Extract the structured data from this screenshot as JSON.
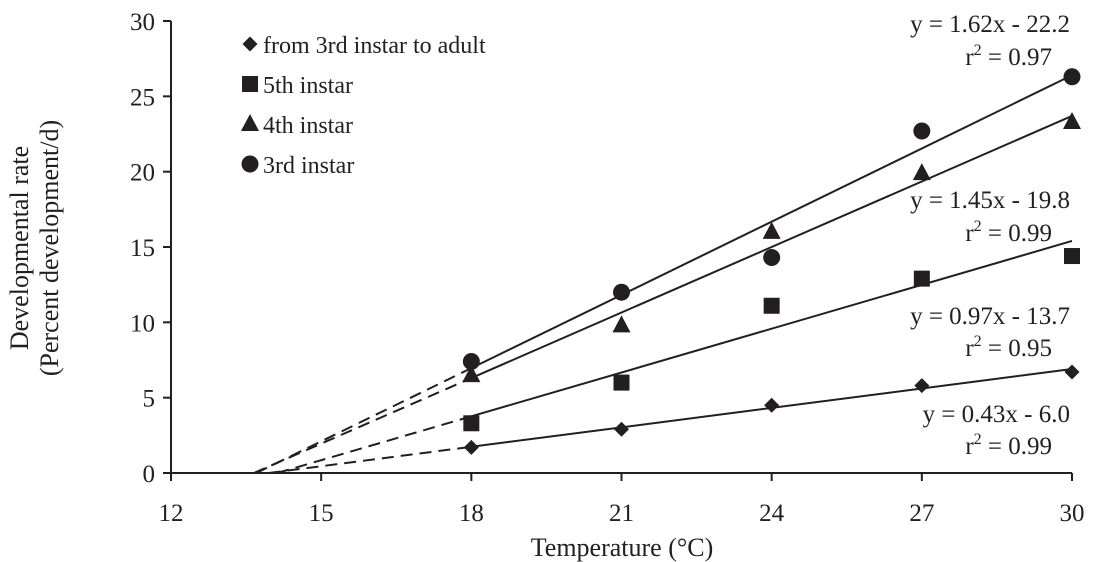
{
  "chart_data": {
    "type": "scatter",
    "xlabel": "Temperature (°C)",
    "ylabel_line1": "Developmental rate",
    "ylabel_line2": "(Percent development/d)",
    "xlim": [
      12,
      30
    ],
    "ylim": [
      0,
      30
    ],
    "xticks": [
      12,
      15,
      18,
      21,
      24,
      27,
      30
    ],
    "yticks": [
      0,
      5,
      10,
      15,
      20,
      25,
      30
    ],
    "grid": false,
    "legend_position": "top-left",
    "x": [
      18,
      21,
      24,
      27,
      30
    ],
    "series": [
      {
        "name": "from 3rd instar to adult",
        "marker": "diamond",
        "values": [
          1.7,
          2.9,
          4.5,
          5.8,
          6.7
        ],
        "fit": {
          "slope": 0.43,
          "intercept": -6.0
        },
        "equation": "y = 0.43x - 6.0",
        "r2_prefix": "r",
        "r2_value": " = 0.99"
      },
      {
        "name": "5th instar",
        "marker": "square",
        "values": [
          3.3,
          6.0,
          11.1,
          12.9,
          14.4
        ],
        "fit": {
          "slope": 0.97,
          "intercept": -13.7
        },
        "equation": "y = 0.97x - 13.7",
        "r2_prefix": "r",
        "r2_value": " = 0.95"
      },
      {
        "name": "4th instar",
        "marker": "triangle",
        "values": [
          6.5,
          9.8,
          16.0,
          19.9,
          23.3
        ],
        "fit": {
          "slope": 1.45,
          "intercept": -19.8
        },
        "equation": "y = 1.45x - 19.8",
        "r2_prefix": "r",
        "r2_value": " = 0.99"
      },
      {
        "name": "3rd instar",
        "marker": "circle",
        "values": [
          7.4,
          12.0,
          14.3,
          22.7,
          26.3
        ],
        "fit": {
          "slope": 1.62,
          "intercept": -22.2
        },
        "equation": "y = 1.62x - 22.2",
        "r2_prefix": "r",
        "r2_value": " = 0.97"
      }
    ],
    "colors": {
      "ink": "#231f20"
    }
  }
}
